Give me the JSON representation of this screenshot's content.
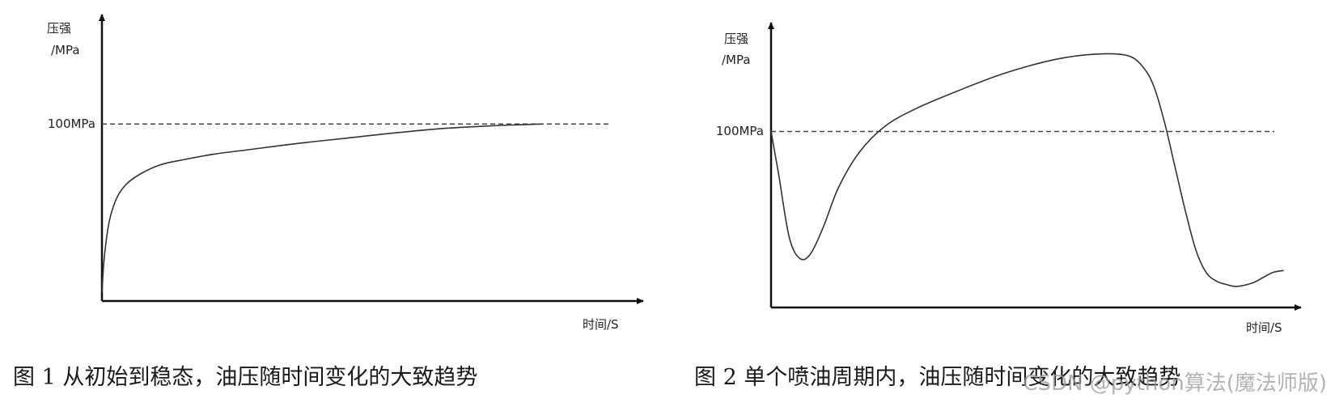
{
  "palette": {
    "axis": "#111111",
    "curve": "#333333",
    "dashed": "#444444"
  },
  "chart_data": [
    {
      "type": "line",
      "ylabel_line1": "压强",
      "ylabel_line2": "/MPa",
      "xlabel": "时间/S",
      "reference_line": {
        "y": 100,
        "label": "100MPa"
      },
      "ylim": [
        0,
        160
      ],
      "xlim": [
        0,
        100
      ],
      "caption": "图 1 从初始到稳态，油压随时间变化的大致趋势",
      "series": [
        {
          "x": [
            0,
            0.5,
            1.5,
            3,
            5,
            8,
            12,
            17,
            23,
            30,
            40,
            50,
            60,
            70,
            80,
            90
          ],
          "y": [
            5,
            25,
            45,
            58,
            66,
            72,
            77,
            80,
            83,
            85.5,
            89,
            92,
            95,
            97.5,
            99,
            100
          ]
        }
      ]
    },
    {
      "type": "line",
      "ylabel_line1": "压强",
      "ylabel_line2": "/MPa",
      "xlabel": "时间/S",
      "reference_line": {
        "y": 100,
        "label": "100MPa"
      },
      "ylim": [
        0,
        160
      ],
      "xlim": [
        0,
        100
      ],
      "caption": "图 2 单个喷油周期内，油压随时间变化的大致趋势",
      "series": [
        {
          "x": [
            0,
            1.5,
            3.5,
            5.5,
            7.5,
            10,
            13,
            17,
            22,
            28,
            36,
            45,
            55,
            63,
            69,
            72,
            74,
            76,
            78,
            80,
            82,
            84,
            86,
            88,
            90,
            93,
            95,
            97,
            99
          ],
          "y": [
            100,
            75,
            40,
            28,
            30,
            45,
            68,
            88,
            103,
            113,
            123,
            133,
            141,
            144,
            143,
            136,
            125,
            105,
            80,
            55,
            33,
            20,
            15,
            13,
            12,
            14,
            17,
            20,
            21
          ]
        }
      ]
    }
  ],
  "watermark": "CSDN @python算法(魔法师版)"
}
